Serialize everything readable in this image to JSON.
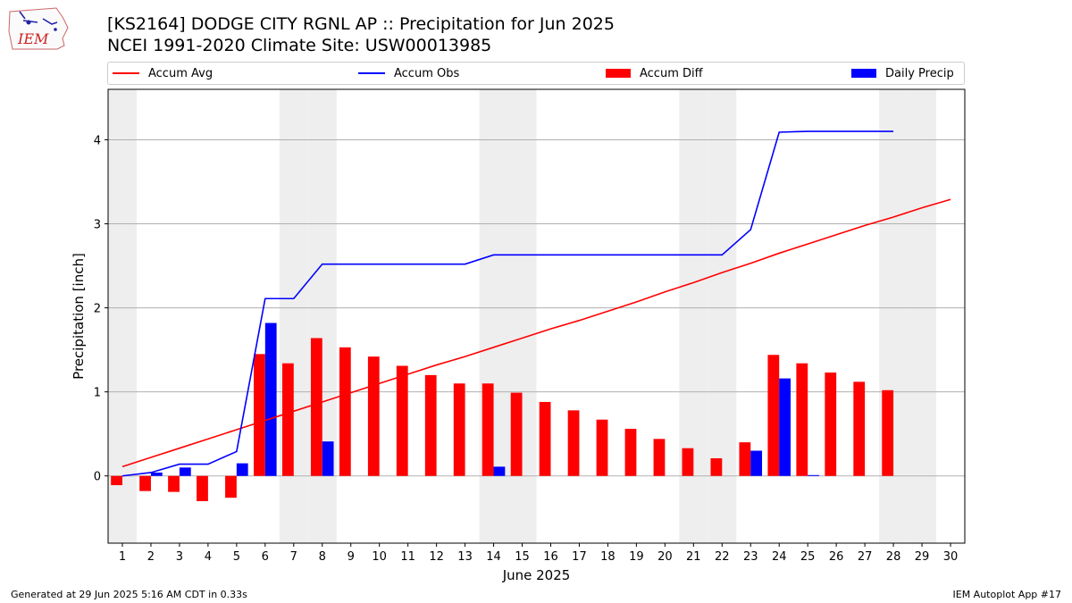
{
  "title_line1": "[KS2164] DODGE CITY RGNL AP :: Precipitation for Jun 2025",
  "title_line2": "NCEI 1991-2020 Climate Site: USW00013985",
  "logo_text": "IEM",
  "footer_left": "Generated at 29 Jun 2025 5:16 AM CDT in 0.33s",
  "footer_right": "IEM Autoplot App #17",
  "colors": {
    "avg": "#ff0000",
    "obs": "#0000ff",
    "diff": "#ff0000",
    "daily": "#0000ff",
    "weekend": "#eeeeee",
    "grid": "#b0b0b0"
  },
  "chart_data": {
    "type": "bar",
    "xlabel": "June 2025",
    "ylabel": "Precipitation [inch]",
    "xlim": [
      0.5,
      30.5
    ],
    "ylim": [
      -0.8,
      4.6
    ],
    "yticks": [
      0,
      1,
      2,
      3,
      4
    ],
    "grid": "horizontal",
    "legend_position": "top",
    "shaded_days": [
      1,
      7,
      8,
      14,
      15,
      21,
      22,
      28,
      29
    ],
    "x": [
      1,
      2,
      3,
      4,
      5,
      6,
      7,
      8,
      9,
      10,
      11,
      12,
      13,
      14,
      15,
      16,
      17,
      18,
      19,
      20,
      21,
      22,
      23,
      24,
      25,
      26,
      27,
      28,
      29,
      30
    ],
    "series": [
      {
        "name": "Accum Avg",
        "kind": "line",
        "values": [
          0.11,
          0.22,
          0.33,
          0.44,
          0.55,
          0.66,
          0.77,
          0.88,
          0.99,
          1.1,
          1.21,
          1.32,
          1.42,
          1.53,
          1.64,
          1.75,
          1.85,
          1.96,
          2.07,
          2.19,
          2.3,
          2.42,
          2.53,
          2.65,
          2.76,
          2.87,
          2.98,
          3.08,
          3.19,
          3.29
        ]
      },
      {
        "name": "Accum Obs",
        "kind": "line",
        "values": [
          0.0,
          0.04,
          0.14,
          0.14,
          0.29,
          2.11,
          2.11,
          2.52,
          2.52,
          2.52,
          2.52,
          2.52,
          2.52,
          2.63,
          2.63,
          2.63,
          2.63,
          2.63,
          2.63,
          2.63,
          2.63,
          2.63,
          2.93,
          4.09,
          4.1,
          4.1,
          4.1,
          4.1,
          null,
          null
        ]
      },
      {
        "name": "Accum Diff",
        "kind": "bar",
        "values": [
          -0.11,
          -0.18,
          -0.19,
          -0.3,
          -0.26,
          1.45,
          1.34,
          1.64,
          1.53,
          1.42,
          1.31,
          1.2,
          1.1,
          1.1,
          0.99,
          0.88,
          0.78,
          0.67,
          0.56,
          0.44,
          0.33,
          0.21,
          0.4,
          1.44,
          1.34,
          1.23,
          1.12,
          1.02,
          null,
          null
        ]
      },
      {
        "name": "Daily Precip",
        "kind": "bar",
        "values": [
          0.0,
          0.04,
          0.1,
          0.0,
          0.15,
          1.82,
          0.0,
          0.41,
          0.0,
          0.0,
          0.0,
          0.0,
          0.0,
          0.11,
          0.0,
          0.0,
          0.0,
          0.0,
          0.0,
          0.0,
          0.0,
          0.0,
          0.3,
          1.16,
          0.01,
          0.0,
          0.0,
          0.0,
          null,
          null
        ]
      }
    ],
    "legend": [
      "Accum Avg",
      "Accum Obs",
      "Accum Diff",
      "Daily Precip"
    ]
  }
}
